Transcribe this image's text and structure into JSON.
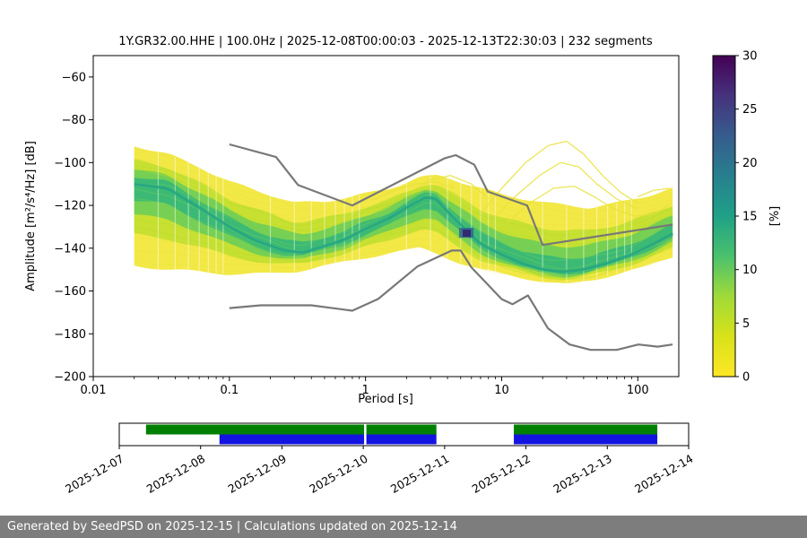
{
  "figure": {
    "title": "1Y.GR32.00.HHE | 100.0Hz | 2025-12-08T00:00:03 - 2025-12-13T22:30:03 | 232 segments"
  },
  "footer": {
    "text": "Generated by SeedPSD on 2025-12-15 | Calculations updated on 2025-12-14",
    "bg": "#7d7d7d",
    "fg": "#ffffff"
  },
  "chart_data": {
    "type": "heatmap",
    "subtype": "ppsd-spectral-probability",
    "title": "1Y.GR32.00.HHE | 100.0Hz | 2025-12-08T00:00:03 - 2025-12-13T22:30:03 | 232 segments",
    "station": "1Y.GR32.00.HHE",
    "sampling_rate": "100.0Hz",
    "time_range": "2025-12-08T00:00:03 - 2025-12-13T22:30:03",
    "segments": 232,
    "xlabel": "Period [s]",
    "ylabel": "Amplitude [m²/s⁴/Hz] [dB]",
    "xscale": "log",
    "xlim": [
      0.01,
      200
    ],
    "ylim": [
      -200,
      -50
    ],
    "xticks": [
      0.01,
      0.1,
      1,
      10,
      100
    ],
    "xtick_labels": [
      "0.01",
      "0.1",
      "1",
      "10",
      "100"
    ],
    "yticks": [
      -60,
      -80,
      -100,
      -120,
      -140,
      -160,
      -180,
      -200
    ],
    "ytick_labels": [
      "−60",
      "−80",
      "−100",
      "−120",
      "−140",
      "−160",
      "−180",
      "−200"
    ],
    "colorbar": {
      "label": "[%]",
      "min": 0,
      "max": 30,
      "ticks": [
        0,
        5,
        10,
        15,
        20,
        25,
        30
      ],
      "tick_labels": [
        "0",
        "5",
        "10",
        "15",
        "20",
        "25",
        "30"
      ],
      "colormap": "viridis_r",
      "stops_top_to_bottom": [
        "#440154",
        "#46327e",
        "#365c8d",
        "#277f8e",
        "#1fa187",
        "#4ac16d",
        "#a0da39",
        "#d8e219",
        "#fde725"
      ]
    },
    "noise_models": {
      "color": "#787878",
      "nhnm": [
        [
          0.1,
          -91.5
        ],
        [
          0.22,
          -97.4
        ],
        [
          0.32,
          -110.5
        ],
        [
          0.8,
          -120.0
        ],
        [
          3.8,
          -98.0
        ],
        [
          4.6,
          -96.5
        ],
        [
          6.3,
          -101.0
        ],
        [
          7.9,
          -113.5
        ],
        [
          15.4,
          -120.0
        ],
        [
          20.0,
          -138.5
        ],
        [
          180.0,
          -129.0
        ]
      ],
      "nlnm": [
        [
          0.1,
          -168.0
        ],
        [
          0.17,
          -166.7
        ],
        [
          0.4,
          -166.7
        ],
        [
          0.8,
          -169.2
        ],
        [
          1.24,
          -163.7
        ],
        [
          2.4,
          -148.6
        ],
        [
          4.3,
          -141.1
        ],
        [
          5.0,
          -141.1
        ],
        [
          6.0,
          -149.0
        ],
        [
          10.0,
          -163.8
        ],
        [
          12.0,
          -166.2
        ],
        [
          15.6,
          -162.1
        ],
        [
          21.9,
          -177.5
        ],
        [
          31.6,
          -185.0
        ],
        [
          45.0,
          -187.5
        ],
        [
          70.0,
          -187.5
        ],
        [
          101.0,
          -185.0
        ],
        [
          140.0,
          -186.0
        ],
        [
          180.0,
          -185.0
        ]
      ]
    },
    "ppsd": {
      "band": [
        [
          0.02,
          -92,
          -148
        ],
        [
          0.035,
          -96,
          -150
        ],
        [
          0.06,
          -102,
          -151
        ],
        [
          0.1,
          -109,
          -152
        ],
        [
          0.2,
          -115,
          -152
        ],
        [
          0.3,
          -119,
          -151
        ],
        [
          0.5,
          -118,
          -148
        ],
        [
          0.8,
          -116,
          -146
        ],
        [
          1.5,
          -112,
          -142
        ],
        [
          2.5,
          -107,
          -140
        ],
        [
          3.5,
          -106,
          -143
        ],
        [
          5,
          -109,
          -147
        ],
        [
          7,
          -112,
          -150
        ],
        [
          10,
          -115,
          -152
        ],
        [
          15,
          -117,
          -154
        ],
        [
          22,
          -119,
          -156
        ],
        [
          30,
          -120,
          -157
        ],
        [
          45,
          -121,
          -155
        ],
        [
          70,
          -119,
          -152
        ],
        [
          110,
          -116,
          -149
        ],
        [
          180,
          -112,
          -144
        ]
      ],
      "mode": [
        [
          0.02,
          -110
        ],
        [
          0.035,
          -112
        ],
        [
          0.06,
          -121
        ],
        [
          0.1,
          -130
        ],
        [
          0.15,
          -136
        ],
        [
          0.25,
          -141
        ],
        [
          0.35,
          -142
        ],
        [
          0.5,
          -139
        ],
        [
          0.7,
          -136
        ],
        [
          1,
          -131
        ],
        [
          1.5,
          -126
        ],
        [
          2,
          -121
        ],
        [
          2.8,
          -116
        ],
        [
          3.3,
          -117
        ],
        [
          4,
          -123
        ],
        [
          5,
          -129
        ],
        [
          5.8,
          -133
        ],
        [
          7,
          -138
        ],
        [
          10,
          -143
        ],
        [
          14,
          -147
        ],
        [
          20,
          -150
        ],
        [
          28,
          -151
        ],
        [
          40,
          -150
        ],
        [
          60,
          -147
        ],
        [
          90,
          -143
        ],
        [
          130,
          -138
        ],
        [
          180,
          -133
        ]
      ],
      "outliers": [
        [
          [
            7,
            -124
          ],
          [
            10,
            -112
          ],
          [
            15,
            -100
          ],
          [
            22,
            -92
          ],
          [
            30,
            -90
          ],
          [
            40,
            -96
          ],
          [
            55,
            -106
          ],
          [
            75,
            -114
          ],
          [
            100,
            -119
          ]
        ],
        [
          [
            9,
            -125
          ],
          [
            13,
            -115
          ],
          [
            19,
            -106
          ],
          [
            27,
            -100
          ],
          [
            37,
            -102
          ],
          [
            50,
            -110
          ],
          [
            70,
            -117
          ],
          [
            95,
            -121
          ]
        ],
        [
          [
            11,
            -128
          ],
          [
            16,
            -119
          ],
          [
            24,
            -112
          ],
          [
            34,
            -111
          ],
          [
            48,
            -116
          ],
          [
            68,
            -122
          ],
          [
            95,
            -125
          ],
          [
            130,
            -124
          ],
          [
            170,
            -120
          ]
        ],
        [
          [
            2.2,
            -113
          ],
          [
            3,
            -108
          ],
          [
            4.2,
            -106
          ],
          [
            6,
            -110
          ],
          [
            8,
            -117
          ]
        ],
        [
          [
            1.1,
            -118
          ],
          [
            1.6,
            -113
          ],
          [
            2.3,
            -110
          ],
          [
            3.2,
            -109
          ],
          [
            4.5,
            -112
          ]
        ],
        [
          [
            100,
            -116
          ],
          [
            130,
            -113
          ],
          [
            170,
            -112
          ]
        ]
      ],
      "outlier_color": "#e8e23c",
      "layer_colors": [
        "#f1e73c",
        "#c2df2f",
        "#6ece58",
        "#35b779"
      ],
      "layer_factors": [
        1.0,
        0.62,
        0.38,
        0.2
      ],
      "core_color": "#1f9e89",
      "hotspot": {
        "period": 5.5,
        "db": -133,
        "color": "#312a72",
        "halo_color": "#31688e"
      }
    },
    "timeline": {
      "dates": [
        "2025-12-07",
        "2025-12-08",
        "2025-12-09",
        "2025-12-10",
        "2025-12-11",
        "2025-12-12",
        "2025-12-13",
        "2025-12-14"
      ],
      "green": {
        "color": "#008000",
        "segments": [
          [
            0.047,
            0.43
          ],
          [
            0.434,
            0.557
          ],
          [
            0.693,
            0.945
          ]
        ]
      },
      "blue": {
        "color": "#1414e0",
        "segments": [
          [
            0.176,
            0.43
          ],
          [
            0.434,
            0.557
          ],
          [
            0.693,
            0.945
          ]
        ]
      }
    }
  }
}
